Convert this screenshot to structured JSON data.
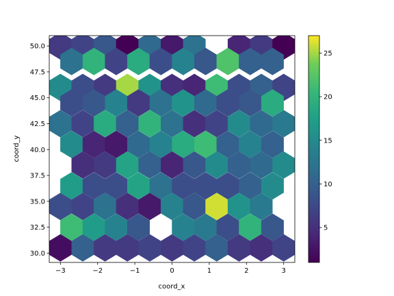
{
  "chart_data": {
    "type": "hexbin",
    "title": "",
    "xlabel": "coord_x",
    "ylabel": "coord_y",
    "xlim": [
      -3.3,
      3.3
    ],
    "ylim": [
      29.1,
      51.0
    ],
    "xticks": [
      -3,
      -2,
      -1,
      0,
      1,
      2,
      3
    ],
    "xtick_labels": [
      "−3",
      "−2",
      "−1",
      "0",
      "1",
      "2",
      "3"
    ],
    "yticks": [
      30.0,
      32.5,
      35.0,
      37.5,
      40.0,
      42.5,
      45.0,
      47.5,
      50.0
    ],
    "ytick_labels": [
      "30.0",
      "32.5",
      "35.0",
      "37.5",
      "40.0",
      "42.5",
      "45.0",
      "47.5",
      "50.0"
    ],
    "colormap": "viridis",
    "colorbar": {
      "range": [
        1,
        27
      ],
      "ticks": [
        5,
        10,
        15,
        20,
        25
      ],
      "tick_labels": [
        "5",
        "10",
        "15",
        "20",
        "25"
      ]
    },
    "grid": false,
    "hex_columns_x_even": [
      -3.0,
      -2.4,
      -1.8,
      -1.2,
      -0.6,
      0.0,
      0.6,
      1.2,
      1.8,
      2.4,
      3.0
    ],
    "hex_columns_x_odd": [
      -2.7,
      -2.1,
      -1.5,
      -0.9,
      -0.3,
      0.3,
      0.9,
      1.5,
      2.1,
      2.7
    ],
    "cells": [
      {
        "y": 50.0,
        "row": "even",
        "values": [
          6,
          7,
          9,
          1,
          11,
          3,
          12,
          null,
          4,
          6,
          1
        ]
      },
      {
        "y": 48.5,
        "row": "odd",
        "values": [
          12,
          20,
          7,
          19,
          8,
          14,
          9,
          22,
          10,
          10
        ]
      },
      {
        "y": 46.0,
        "row": "even",
        "values": [
          15,
          8,
          6,
          25,
          16,
          5,
          4,
          21,
          8,
          10,
          7
        ]
      },
      {
        "y": 44.5,
        "row": "odd",
        "values": [
          8,
          9,
          14,
          6,
          12,
          16,
          11,
          8,
          9,
          19
        ]
      },
      {
        "y": 42.5,
        "row": "even",
        "values": [
          12,
          7,
          19,
          10,
          20,
          12,
          5,
          7,
          15,
          11,
          13
        ]
      },
      {
        "y": 40.5,
        "row": "odd",
        "values": [
          15,
          4,
          3,
          11,
          14,
          19,
          21,
          10,
          14,
          10
        ]
      },
      {
        "y": 38.5,
        "row": "even",
        "values": [
          null,
          5,
          6,
          18,
          10,
          4,
          9,
          15,
          10,
          11,
          15
        ]
      },
      {
        "y": 36.5,
        "row": "odd",
        "values": [
          17,
          8,
          8,
          18,
          12,
          8,
          8,
          8,
          10,
          15
        ]
      },
      {
        "y": 34.5,
        "row": "even",
        "values": [
          8,
          7,
          12,
          5,
          3,
          14,
          9,
          26,
          16,
          13,
          null
        ]
      },
      {
        "y": 32.5,
        "row": "odd",
        "values": [
          21,
          17,
          14,
          9,
          null,
          14,
          13,
          8,
          20,
          9
        ]
      },
      {
        "y": 30.5,
        "row": "even",
        "values": [
          2,
          10,
          6,
          6,
          7,
          6,
          7,
          10,
          6,
          5,
          7
        ]
      }
    ]
  }
}
